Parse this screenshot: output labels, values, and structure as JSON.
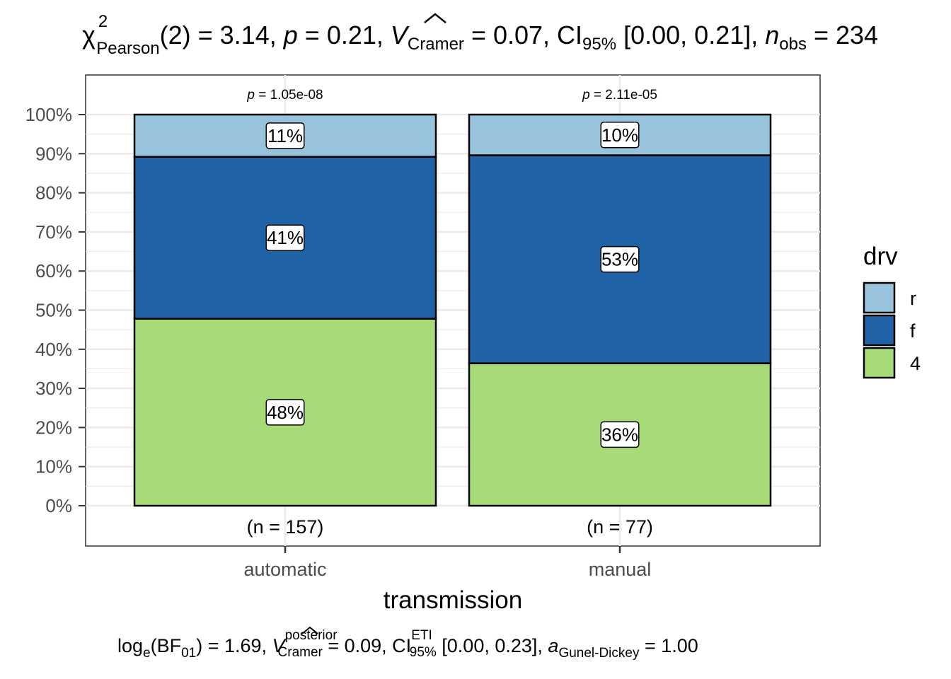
{
  "chart_data": {
    "type": "bar",
    "stacked": true,
    "percent": true,
    "title_parts": {
      "chi": "χ",
      "chi_sup": "2",
      "chi_sub": "Pearson",
      "rest1": "(2) = 3.14, ",
      "p": "p",
      "rest2": " = 0.21, ",
      "v": "V",
      "v_sub": "Cramer",
      "rest3": " = 0.07, CI",
      "ci_sub": "95%",
      "rest4": " [0.00, 0.21], ",
      "n": "n",
      "n_sub": "obs",
      "rest5": " = 234"
    },
    "subtitle_parts": {
      "log": "log",
      "log_sub": "e",
      "bf_open": "(BF",
      "bf_sub": "01",
      "bf_rest": ") = 1.69, ",
      "v": "V",
      "v_sup": "posterior",
      "v_sub": "Cramer",
      "rest1": " = 0.09, CI",
      "ci_sup": "ETI",
      "ci_sub": "95%",
      "rest2": " [0.00, 0.23], ",
      "a": "a",
      "a_sub": "Gunel-Dickey",
      "rest3": " = 1.00"
    },
    "xlabel": "transmission",
    "ylabel": "",
    "ylim": [
      0,
      100
    ],
    "yticks": [
      "0%",
      "10%",
      "20%",
      "30%",
      "40%",
      "50%",
      "60%",
      "70%",
      "80%",
      "90%",
      "100%"
    ],
    "categories": [
      "automatic",
      "manual"
    ],
    "series": [
      {
        "name": "4",
        "color": "#a6db78",
        "values": [
          47.8,
          36.4
        ],
        "labels": [
          "48%",
          "36%"
        ]
      },
      {
        "name": "f",
        "color": "#1f63a6",
        "values": [
          41.4,
          53.2
        ],
        "labels": [
          "41%",
          "53%"
        ]
      },
      {
        "name": "r",
        "color": "#97c3dc",
        "values": [
          10.8,
          10.4
        ],
        "labels": [
          "11%",
          "10%"
        ]
      }
    ],
    "p_labels": [
      {
        "p": "p",
        "rest": " = 1.05e-08"
      },
      {
        "p": "p",
        "rest": " = 2.11e-05"
      }
    ],
    "n_labels": [
      "(n = 157)",
      "(n = 77)"
    ],
    "legend": {
      "title": "drv",
      "position": "right",
      "items": [
        {
          "label": "r",
          "color": "#97c3dc"
        },
        {
          "label": "f",
          "color": "#1f63a6"
        },
        {
          "label": "4",
          "color": "#a6db78"
        }
      ]
    },
    "grid": true
  }
}
